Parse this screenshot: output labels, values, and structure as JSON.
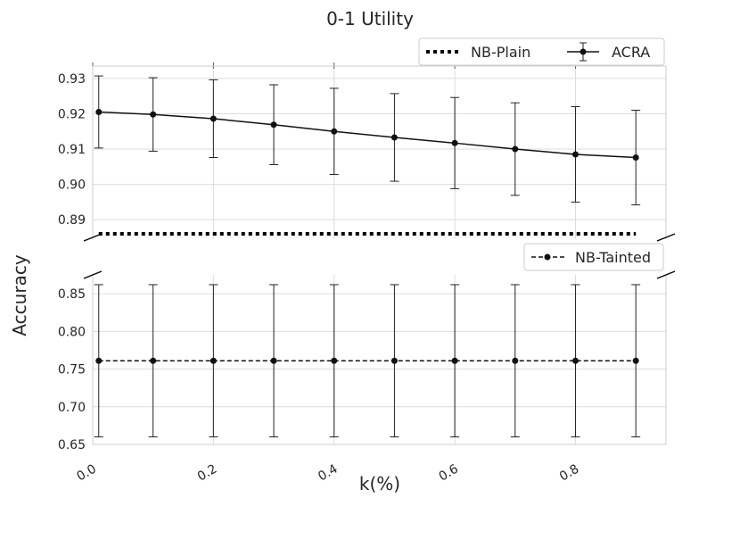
{
  "chart_data": {
    "type": "line",
    "title": "0-1 Utility",
    "xlabel": "k(%)",
    "ylabel": "Accuracy",
    "x": [
      0.01,
      0.1,
      0.2,
      0.3,
      0.4,
      0.5,
      0.6,
      0.7,
      0.8,
      0.9
    ],
    "xlim": [
      0.0,
      0.95
    ],
    "xticks": [
      "0.0",
      "0.2",
      "0.4",
      "0.6",
      "0.8"
    ],
    "grid": true,
    "broken_axis": true,
    "panels": [
      {
        "ylim": [
          0.8845,
          0.9335
        ],
        "yticks": [
          "0.89",
          "0.90",
          "0.91",
          "0.92",
          "0.93"
        ],
        "legend_position": "top-right",
        "series": [
          {
            "name": "NB-Plain",
            "style": "dotted",
            "markers": false,
            "values": [
              0.886,
              0.886,
              0.886,
              0.886,
              0.886,
              0.886,
              0.886,
              0.886,
              0.886,
              0.886
            ]
          },
          {
            "name": "ACRA",
            "style": "solid",
            "markers": true,
            "values": [
              0.9205,
              0.9198,
              0.9186,
              0.9169,
              0.915,
              0.9133,
              0.9117,
              0.91,
              0.9085,
              0.9076
            ],
            "error": [
              0.0102,
              0.0104,
              0.011,
              0.0113,
              0.0122,
              0.0124,
              0.0129,
              0.0131,
              0.0135,
              0.0134
            ]
          }
        ]
      },
      {
        "ylim": [
          0.65,
          0.875
        ],
        "yticks": [
          "0.65",
          "0.70",
          "0.75",
          "0.80",
          "0.85"
        ],
        "legend_position": "top-right",
        "series": [
          {
            "name": "NB-Tainted",
            "style": "dashed",
            "markers": true,
            "values": [
              0.761,
              0.761,
              0.761,
              0.761,
              0.761,
              0.761,
              0.761,
              0.761,
              0.761,
              0.761
            ],
            "error": [
              0.101,
              0.101,
              0.101,
              0.101,
              0.101,
              0.101,
              0.101,
              0.101,
              0.101,
              0.101
            ]
          }
        ]
      }
    ]
  }
}
